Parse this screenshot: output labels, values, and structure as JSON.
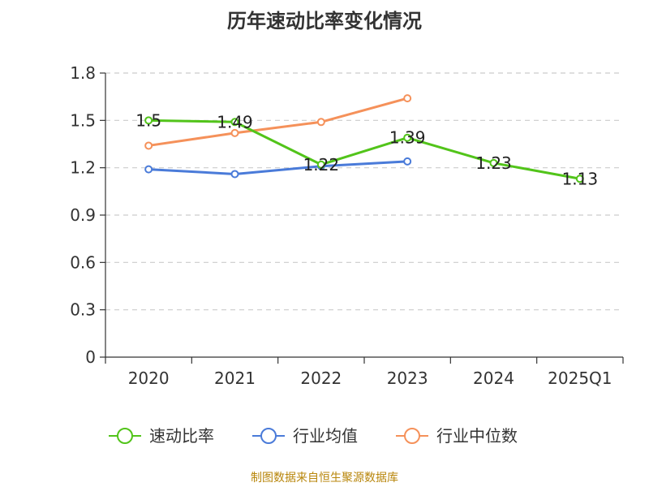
{
  "title": "历年速动比率变化情况",
  "source": "制图数据来自恒生聚源数据库",
  "chart_data": {
    "type": "line",
    "title": "历年速动比率变化情况",
    "categories": [
      "2020",
      "2021",
      "2022",
      "2023",
      "2024",
      "2025Q1"
    ],
    "ylim": [
      0,
      1.8
    ],
    "yticks": [
      "0",
      "0.3",
      "0.6",
      "0.9",
      "1.2",
      "1.5",
      "1.8"
    ],
    "grid": true,
    "legend_position": "bottom",
    "series": [
      {
        "name": "速动比率",
        "color": "#52c41a",
        "values": [
          1.5,
          1.49,
          1.22,
          1.39,
          1.23,
          1.13
        ],
        "labels": [
          "1.5",
          "1.49",
          "1.22",
          "1.39",
          "1.23",
          "1.13"
        ]
      },
      {
        "name": "行业均值",
        "color": "#4a7bd9",
        "values": [
          1.19,
          1.16,
          1.21,
          1.24,
          null,
          null
        ]
      },
      {
        "name": "行业中位数",
        "color": "#f5915a",
        "values": [
          1.34,
          1.42,
          1.49,
          1.64,
          null,
          null
        ]
      }
    ]
  }
}
